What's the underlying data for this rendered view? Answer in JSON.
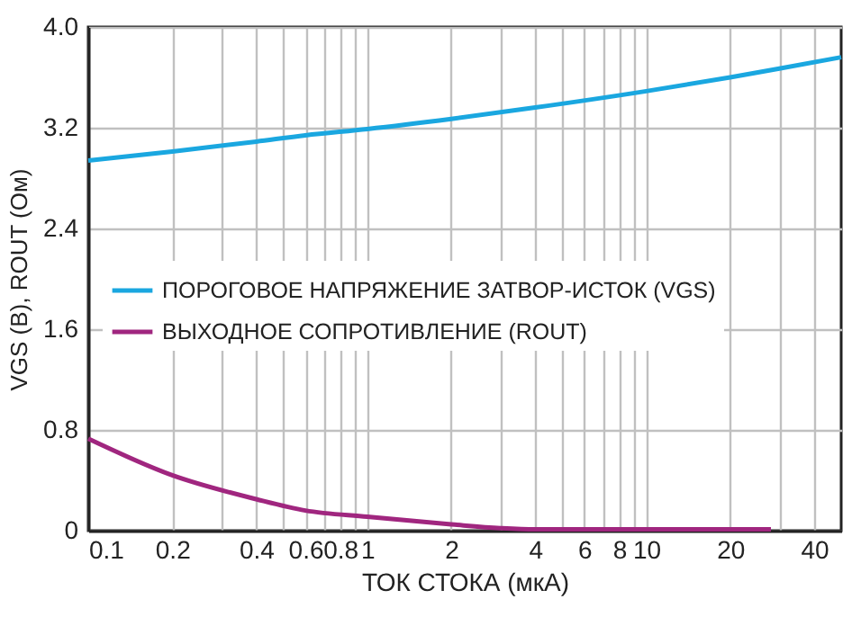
{
  "chart_data": {
    "type": "line",
    "xlabel": "ТОК СТОКА (мкА)",
    "ylabel": "VGS (В), ROUT (Ом)",
    "log": "x",
    "grid": true,
    "legend": "left",
    "line_style": "solid",
    "marker": "none",
    "xlim": [
      0.1,
      50
    ],
    "ylim": [
      0,
      4.0
    ],
    "xticks": [
      0.1,
      0.2,
      {
        "value": 0.3,
        "label": null
      },
      0.4,
      {
        "value": 0.5,
        "label": null
      },
      0.6,
      {
        "value": 0.7,
        "label": null
      },
      0.8,
      {
        "value": 0.9,
        "label": null
      },
      1,
      2,
      {
        "value": 3,
        "label": null
      },
      4,
      {
        "value": 5,
        "label": null
      },
      6,
      {
        "value": 7,
        "label": null
      },
      8,
      {
        "value": 9,
        "label": null
      },
      10,
      20,
      {
        "value": 30,
        "label": null
      },
      40
    ],
    "yticks": [
      0,
      0.8,
      1.6,
      2.4,
      3.2,
      {
        "value": 4.0,
        "label": "4.0"
      }
    ],
    "series": [
      {
        "name": "ПОРОГОВОЕ НАПРЯЖЕНИЕ ЗАТВОР-ИСТОК (VGS)",
        "color": "#1aa7e0",
        "x": [
          0.1,
          0.2,
          0.4,
          0.6,
          1,
          2,
          4,
          10,
          20,
          30,
          50
        ],
        "values": [
          2.94,
          3.01,
          3.09,
          3.14,
          3.19,
          3.27,
          3.36,
          3.49,
          3.6,
          3.67,
          3.76
        ]
      },
      {
        "name": "ВЫХОДНОЕ СОПРОТИВЛЕНИЕ (ROUT)",
        "color": "#a0267f",
        "x": [
          0.1,
          0.2,
          0.4,
          0.6,
          1,
          2,
          3,
          4,
          6,
          10,
          28
        ],
        "values": [
          0.73,
          0.44,
          0.25,
          0.16,
          0.11,
          0.05,
          0.02,
          0.01,
          0.01,
          0.01,
          0.01
        ]
      }
    ]
  }
}
